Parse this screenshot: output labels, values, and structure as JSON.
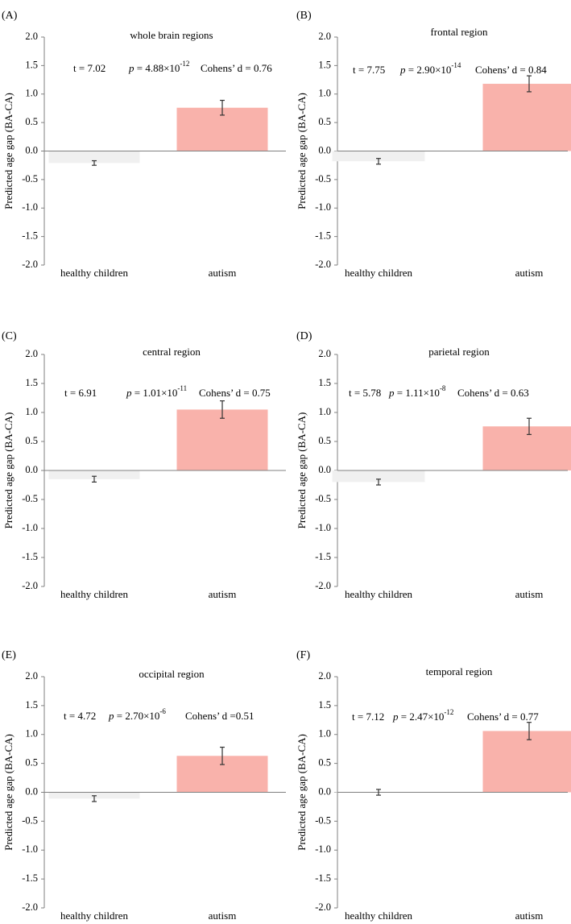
{
  "figure": {
    "ylabel": "Predicted age gap (BA-CA)",
    "colors": {
      "healthy": "#f0f0f0",
      "autism": "#f9b2ab",
      "axis": "#808080",
      "errorbar": "#333333"
    }
  },
  "chart_data": [
    {
      "type": "bar",
      "panel_label": "(A)",
      "title": "whole brain regions",
      "categories": [
        "healthy children",
        "autism"
      ],
      "values": [
        -0.21,
        0.76
      ],
      "errors": [
        0.04,
        0.13
      ],
      "ylim": [
        -2.0,
        2.0
      ],
      "yticks": [
        "-2.0",
        "-1.5",
        "-1.0",
        "-0.5",
        "0.0",
        "0.5",
        "1.0",
        "1.5",
        "2.0"
      ],
      "xlabel": "",
      "ylabel": "Predicted age gap (BA-CA)",
      "stats": {
        "t": "t = 7.02",
        "p_label": "p",
        "p_value": "= 4.88×10",
        "p_exp": "-12",
        "cohens": "Cohens’ d = 0.76"
      }
    },
    {
      "type": "bar",
      "panel_label": "(B)",
      "title": "frontal region",
      "categories": [
        "healthy children",
        "autism"
      ],
      "values": [
        -0.18,
        1.18
      ],
      "errors": [
        0.05,
        0.14
      ],
      "ylim": [
        -2.0,
        2.0
      ],
      "yticks": [
        "-2.0",
        "-1.5",
        "-1.0",
        "-0.5",
        "0.0",
        "0.5",
        "1.0",
        "1.5",
        "2.0"
      ],
      "xlabel": "",
      "ylabel": "Predicted age gap (BA-CA)",
      "stats": {
        "t": "t = 7.75",
        "p_label": "p",
        "p_value": "= 2.90×10",
        "p_exp": "-14",
        "cohens": "Cohens’ d = 0.84"
      }
    },
    {
      "type": "bar",
      "panel_label": "(C)",
      "title": "central region",
      "categories": [
        "healthy children",
        "autism"
      ],
      "values": [
        -0.15,
        1.05
      ],
      "errors": [
        0.05,
        0.15
      ],
      "ylim": [
        -2.0,
        2.0
      ],
      "yticks": [
        "-2.0",
        "-1.5",
        "-1.0",
        "-0.5",
        "0.0",
        "0.5",
        "1.0",
        "1.5",
        "2.0"
      ],
      "xlabel": "",
      "ylabel": "Predicted age gap (BA-CA)",
      "stats": {
        "t": "t = 6.91",
        "p_label": "p",
        "p_value": "= 1.01×10",
        "p_exp": "-11",
        "cohens": "Cohens’ d = 0.75"
      }
    },
    {
      "type": "bar",
      "panel_label": "(D)",
      "title": "parietal region",
      "categories": [
        "healthy children",
        "autism"
      ],
      "values": [
        -0.2,
        0.76
      ],
      "errors": [
        0.05,
        0.14
      ],
      "ylim": [
        -2.0,
        2.0
      ],
      "yticks": [
        "-2.0",
        "-1.5",
        "-1.0",
        "-0.5",
        "0.0",
        "0.5",
        "1.0",
        "1.5",
        "2.0"
      ],
      "xlabel": "",
      "ylabel": "Predicted age gap (BA-CA)",
      "stats": {
        "t": "t = 5.78",
        "p_label": "p",
        "p_value": "= 1.11×10",
        "p_exp": "-8",
        "cohens": "Cohens’ d = 0.63"
      }
    },
    {
      "type": "bar",
      "panel_label": "(E)",
      "title": "occipital region",
      "categories": [
        "healthy children",
        "autism"
      ],
      "values": [
        -0.11,
        0.63
      ],
      "errors": [
        0.05,
        0.15
      ],
      "ylim": [
        -2.0,
        2.0
      ],
      "yticks": [
        "-2.0",
        "-1.5",
        "-1.0",
        "-0.5",
        "0.0",
        "0.5",
        "1.0",
        "1.5",
        "2.0"
      ],
      "xlabel": "",
      "ylabel": "Predicted age gap (BA-CA)",
      "stats": {
        "t": "t = 4.72",
        "p_label": "p",
        "p_value": "= 2.70×10",
        "p_exp": "-6",
        "cohens": "Cohens’ d =0.51"
      }
    },
    {
      "type": "bar",
      "panel_label": "(F)",
      "title": "temporal region",
      "categories": [
        "healthy children",
        "autism"
      ],
      "values": [
        0.0,
        1.06
      ],
      "errors": [
        0.05,
        0.15
      ],
      "ylim": [
        -2.0,
        2.0
      ],
      "yticks": [
        "-2.0",
        "-1.5",
        "-1.0",
        "-0.5",
        "0.0",
        "0.5",
        "1.0",
        "1.5",
        "2.0"
      ],
      "xlabel": "",
      "ylabel": "Predicted age gap (BA-CA)",
      "stats": {
        "t": "t = 7.12",
        "p_label": "p",
        "p_value": "= 2.47×10",
        "p_exp": "-12",
        "cohens": "Cohens’ d = 0.77"
      }
    }
  ]
}
